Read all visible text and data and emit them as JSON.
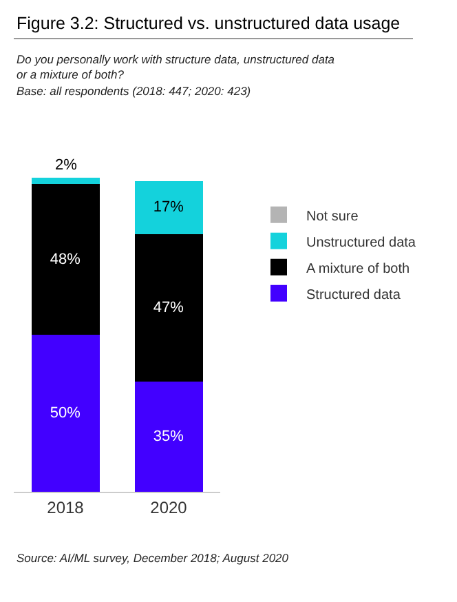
{
  "chart_data": {
    "type": "bar",
    "stacked": true,
    "title": "Figure 3.2: Structured vs. unstructured data usage",
    "subtitle": "Do you personally work with structure data, unstructured data or a mixture of both?",
    "annotations": [
      "Base: all respondents (2018: 447; 2020: 423)",
      "Source: AI/ML survey, December 2018; August 2020"
    ],
    "categories": [
      "2018",
      "2020"
    ],
    "series": [
      {
        "name": "Structured data",
        "color": "#4200ff",
        "values": [
          50,
          35
        ],
        "value_labels": [
          "50%",
          "35%"
        ]
      },
      {
        "name": "A mixture of both",
        "color": "#000000",
        "values": [
          48,
          47
        ],
        "value_labels": [
          "48%",
          "47%"
        ]
      },
      {
        "name": "Unstructured data",
        "color": "#14d2dc",
        "values": [
          2,
          17
        ],
        "value_labels": [
          "2%",
          "17%"
        ]
      },
      {
        "name": "Not sure",
        "color": "#b4b4b4",
        "values": [
          0,
          0
        ],
        "value_labels": [
          null,
          null
        ]
      }
    ],
    "legend": "right"
  }
}
